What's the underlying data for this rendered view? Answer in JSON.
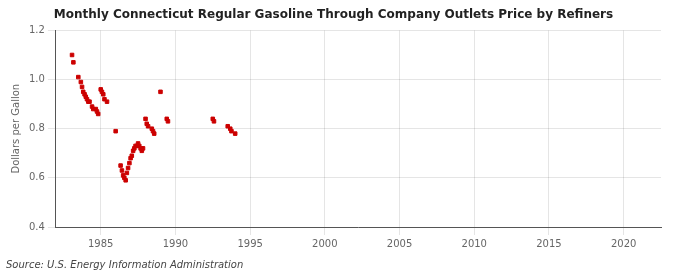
{
  "chart_data": {
    "type": "scatter",
    "title": "Monthly Connecticut Regular Gasoline Through Company Outlets Price by Refiners",
    "ylabel": "Dollars per Gallon",
    "annotation": "Source: U.S. Energy Information Administration",
    "color": "#cc0000",
    "marker": "square",
    "grid": true,
    "xlim": [
      1982.0,
      2022.5
    ],
    "ylim": [
      0.4,
      1.2
    ],
    "xticks": [
      1985,
      1990,
      1995,
      2000,
      2005,
      2010,
      2015,
      2020
    ],
    "yticks": [
      0.4,
      0.6,
      0.8,
      {
        "value": 1.0,
        "label": "1.0"
      },
      1.2
    ],
    "x": [
      1983.08,
      1983.17,
      1983.5,
      1983.67,
      1983.75,
      1983.83,
      1983.92,
      1984.0,
      1984.08,
      1984.17,
      1984.25,
      1984.42,
      1984.5,
      1984.67,
      1984.75,
      1984.83,
      1985.0,
      1985.08,
      1985.17,
      1985.25,
      1985.42,
      1986.0,
      1986.33,
      1986.42,
      1986.5,
      1986.58,
      1986.67,
      1986.75,
      1986.83,
      1986.92,
      1987.0,
      1987.08,
      1987.17,
      1987.25,
      1987.33,
      1987.42,
      1987.5,
      1987.58,
      1987.67,
      1987.75,
      1987.83,
      1988.0,
      1988.08,
      1988.17,
      1988.42,
      1988.5,
      1988.58,
      1989.0,
      1989.42,
      1989.5,
      1992.5,
      1992.58,
      1993.5,
      1993.67,
      1993.75,
      1994.0
    ],
    "values": [
      1.1,
      1.07,
      1.01,
      0.99,
      0.97,
      0.95,
      0.94,
      0.93,
      0.92,
      0.91,
      0.91,
      0.89,
      0.88,
      0.88,
      0.87,
      0.86,
      0.96,
      0.95,
      0.94,
      0.92,
      0.91,
      0.79,
      0.65,
      0.63,
      0.61,
      0.6,
      0.59,
      0.62,
      0.64,
      0.66,
      0.68,
      0.69,
      0.71,
      0.72,
      0.73,
      0.73,
      0.74,
      0.73,
      0.72,
      0.71,
      0.72,
      0.84,
      0.82,
      0.81,
      0.8,
      0.79,
      0.78,
      0.95,
      0.84,
      0.83,
      0.84,
      0.83,
      0.81,
      0.8,
      0.79,
      0.78
    ]
  }
}
